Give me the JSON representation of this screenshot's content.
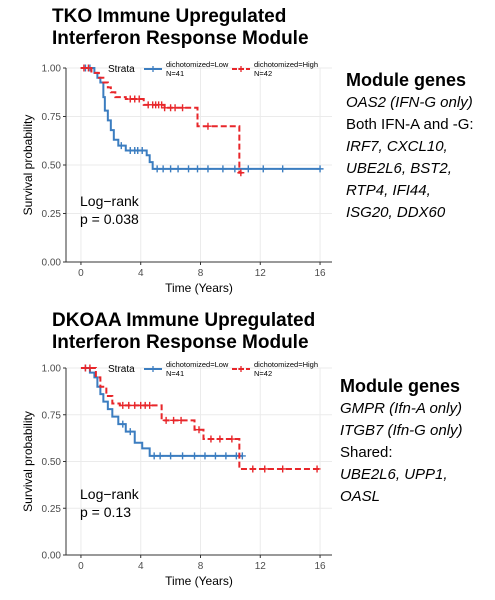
{
  "chart_data": [
    {
      "type": "line",
      "subtype": "kaplan-meier",
      "title": [
        "TKO Immune Upregulated",
        "Interferon Response Module"
      ],
      "xlabel": "Time (Years)",
      "ylabel": "Survival probability",
      "xlim": [
        -1,
        16.8
      ],
      "ylim": [
        0,
        1
      ],
      "xticks": [
        0,
        4,
        8,
        12,
        16
      ],
      "yticks": [
        0,
        0.25,
        0.5,
        0.75,
        1
      ],
      "xtick_labels": [
        "0",
        "4",
        "8",
        "12",
        "16"
      ],
      "ytick_labels": [
        "0.00",
        "0.25",
        "0.50",
        "0.75",
        "1.00"
      ],
      "grid": true,
      "legend": {
        "title": "Strata",
        "placement": "top",
        "entries": [
          {
            "label": "dichotomized=Low",
            "n": "N=41",
            "color": "#3b7dc0"
          },
          {
            "label": "dichotomized=High",
            "n": "N=42",
            "color": "#e8262a"
          }
        ]
      },
      "annotation": {
        "line1": "Log−rank",
        "line2": "p = 0.038"
      },
      "series": [
        {
          "name": "dichotomized=Low",
          "color": "#3b7dc0",
          "dashed": false,
          "steps": [
            [
              0,
              1.0
            ],
            [
              0.9,
              0.975
            ],
            [
              1.1,
              0.95
            ],
            [
              1.3,
              0.925
            ],
            [
              1.5,
              0.85
            ],
            [
              1.6,
              0.78
            ],
            [
              1.8,
              0.73
            ],
            [
              2.0,
              0.68
            ],
            [
              2.2,
              0.63
            ],
            [
              2.5,
              0.6
            ],
            [
              3.0,
              0.575
            ],
            [
              4.4,
              0.55
            ],
            [
              4.6,
              0.515
            ],
            [
              4.8,
              0.48
            ],
            [
              16.0,
              0.48
            ]
          ],
          "censor": [
            [
              0.3,
              1.0
            ],
            [
              0.6,
              1.0
            ],
            [
              2.7,
              0.6
            ],
            [
              3.3,
              0.575
            ],
            [
              3.6,
              0.575
            ],
            [
              3.8,
              0.575
            ],
            [
              4.1,
              0.575
            ],
            [
              5.1,
              0.48
            ],
            [
              5.5,
              0.48
            ],
            [
              6.0,
              0.48
            ],
            [
              6.5,
              0.48
            ],
            [
              7.2,
              0.48
            ],
            [
              7.8,
              0.48
            ],
            [
              8.5,
              0.48
            ],
            [
              9.5,
              0.48
            ],
            [
              10.3,
              0.48
            ],
            [
              11.2,
              0.48
            ],
            [
              12.2,
              0.48
            ],
            [
              13.5,
              0.48
            ],
            [
              16.0,
              0.48
            ]
          ]
        },
        {
          "name": "dichotomized=High",
          "color": "#e8262a",
          "dashed": true,
          "steps": [
            [
              0,
              1.0
            ],
            [
              0.7,
              0.975
            ],
            [
              1.2,
              0.95
            ],
            [
              1.5,
              0.925
            ],
            [
              1.8,
              0.9
            ],
            [
              2.0,
              0.875
            ],
            [
              2.3,
              0.85
            ],
            [
              3.0,
              0.84
            ],
            [
              4.2,
              0.81
            ],
            [
              5.6,
              0.795
            ],
            [
              7.8,
              0.7
            ],
            [
              9.4,
              0.7
            ],
            [
              10.6,
              0.46
            ],
            [
              10.8,
              0.46
            ]
          ],
          "censor": [
            [
              0.2,
              1.0
            ],
            [
              0.5,
              1.0
            ],
            [
              3.3,
              0.84
            ],
            [
              3.6,
              0.84
            ],
            [
              3.9,
              0.84
            ],
            [
              4.5,
              0.81
            ],
            [
              4.8,
              0.81
            ],
            [
              5.0,
              0.81
            ],
            [
              5.2,
              0.81
            ],
            [
              5.4,
              0.81
            ],
            [
              5.6,
              0.795
            ],
            [
              6.0,
              0.795
            ],
            [
              6.3,
              0.795
            ],
            [
              6.8,
              0.795
            ],
            [
              8.5,
              0.7
            ],
            [
              10.7,
              0.46
            ]
          ]
        }
      ]
    },
    {
      "type": "line",
      "subtype": "kaplan-meier",
      "title": [
        "DKOAA Immune Upregulated",
        "Interferon Response Module"
      ],
      "xlabel": "Time (Years)",
      "ylabel": "Survival probability",
      "xlim": [
        -1,
        16.8
      ],
      "ylim": [
        0,
        1
      ],
      "xticks": [
        0,
        4,
        8,
        12,
        16
      ],
      "yticks": [
        0,
        0.25,
        0.5,
        0.75,
        1
      ],
      "xtick_labels": [
        "0",
        "4",
        "8",
        "12",
        "16"
      ],
      "ytick_labels": [
        "0.00",
        "0.25",
        "0.50",
        "0.75",
        "1.00"
      ],
      "grid": true,
      "legend": {
        "title": "Strata",
        "placement": "top",
        "entries": [
          {
            "label": "dichotomized=Low",
            "n": "N=41",
            "color": "#3b7dc0"
          },
          {
            "label": "dichotomized=High",
            "n": "N=42",
            "color": "#e8262a"
          }
        ]
      },
      "annotation": {
        "line1": "Log−rank",
        "line2": "p = 0.13"
      },
      "series": [
        {
          "name": "dichotomized=Low",
          "color": "#3b7dc0",
          "dashed": false,
          "steps": [
            [
              0,
              1.0
            ],
            [
              0.6,
              0.975
            ],
            [
              0.9,
              0.95
            ],
            [
              1.1,
              0.9
            ],
            [
              1.3,
              0.86
            ],
            [
              1.5,
              0.82
            ],
            [
              1.8,
              0.78
            ],
            [
              2.1,
              0.74
            ],
            [
              2.5,
              0.7
            ],
            [
              3.0,
              0.66
            ],
            [
              3.6,
              0.6
            ],
            [
              4.1,
              0.57
            ],
            [
              4.6,
              0.53
            ],
            [
              10.6,
              0.53
            ],
            [
              10.8,
              0.53
            ]
          ],
          "censor": [
            [
              0.3,
              1.0
            ],
            [
              2.8,
              0.7
            ],
            [
              3.3,
              0.66
            ],
            [
              4.9,
              0.53
            ],
            [
              5.3,
              0.53
            ],
            [
              6.0,
              0.53
            ],
            [
              6.8,
              0.53
            ],
            [
              7.6,
              0.53
            ],
            [
              8.3,
              0.53
            ],
            [
              9.0,
              0.53
            ],
            [
              9.7,
              0.53
            ],
            [
              10.4,
              0.53
            ],
            [
              10.8,
              0.53
            ]
          ]
        },
        {
          "name": "dichotomized=High",
          "color": "#e8262a",
          "dashed": true,
          "steps": [
            [
              0,
              1.0
            ],
            [
              1.0,
              0.95
            ],
            [
              1.3,
              0.9
            ],
            [
              1.7,
              0.85
            ],
            [
              2.1,
              0.81
            ],
            [
              2.6,
              0.8
            ],
            [
              5.4,
              0.72
            ],
            [
              7.6,
              0.67
            ],
            [
              8.2,
              0.62
            ],
            [
              10.6,
              0.46
            ],
            [
              16.0,
              0.46
            ]
          ],
          "censor": [
            [
              0.3,
              1.0
            ],
            [
              0.6,
              1.0
            ],
            [
              2.8,
              0.8
            ],
            [
              3.2,
              0.8
            ],
            [
              3.6,
              0.8
            ],
            [
              4.0,
              0.8
            ],
            [
              4.3,
              0.8
            ],
            [
              4.6,
              0.8
            ],
            [
              5.7,
              0.72
            ],
            [
              6.2,
              0.72
            ],
            [
              6.7,
              0.72
            ],
            [
              7.9,
              0.67
            ],
            [
              8.7,
              0.62
            ],
            [
              9.3,
              0.62
            ],
            [
              10.1,
              0.62
            ],
            [
              11.5,
              0.46
            ],
            [
              12.3,
              0.46
            ],
            [
              13.5,
              0.46
            ],
            [
              15.8,
              0.46
            ]
          ]
        }
      ]
    }
  ],
  "genes": [
    {
      "heading": "Module genes",
      "lines": [
        {
          "parts": [
            {
              "t": "OAS2  (IFN-G only)",
              "i": true
            }
          ]
        },
        {
          "parts": [
            {
              "t": "Both IFN-A and -G:",
              "i": false
            }
          ]
        },
        {
          "parts": [
            {
              "t": "IRF7, CXCL10,",
              "i": true
            }
          ]
        },
        {
          "parts": [
            {
              "t": "UBE2L6, BST2,",
              "i": true
            }
          ]
        },
        {
          "parts": [
            {
              "t": "RTP4, IFI44,",
              "i": true
            }
          ]
        },
        {
          "parts": [
            {
              "t": "ISG20, DDX60",
              "i": true
            }
          ]
        }
      ]
    },
    {
      "heading": "Module genes",
      "lines": [
        {
          "parts": [
            {
              "t": "GMPR (Ifn-A only)",
              "i": true
            }
          ]
        },
        {
          "parts": [
            {
              "t": "ITGB7 (Ifn-G only)",
              "i": true
            }
          ]
        },
        {
          "parts": [
            {
              "t": "Shared:",
              "i": false
            }
          ]
        },
        {
          "parts": [
            {
              "t": "UBE2L6, UPP1,",
              "i": true
            }
          ]
        },
        {
          "parts": [
            {
              "t": "OASL",
              "i": true
            }
          ]
        }
      ]
    }
  ]
}
